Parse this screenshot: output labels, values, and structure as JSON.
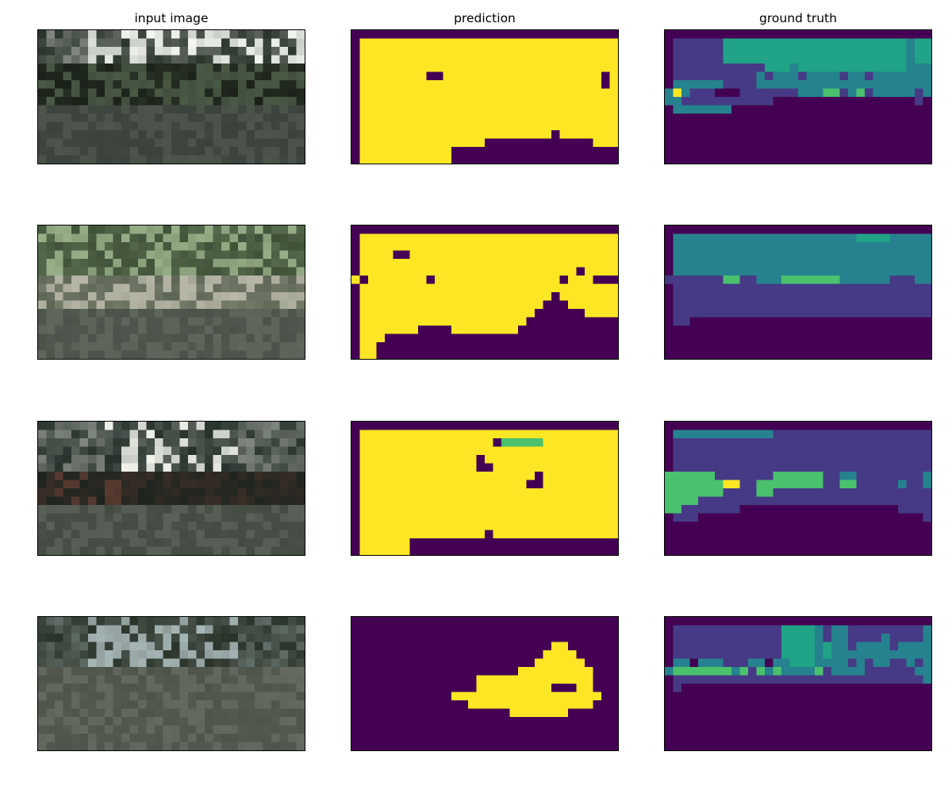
{
  "column_titles": [
    "input image",
    "prediction",
    "ground truth"
  ],
  "grid": {
    "cols": 32,
    "rows": 16
  },
  "palette": {
    "class0": "#440154",
    "class1": "#463a86",
    "class2": "#26828e",
    "class3": "#20a386",
    "class4": "#4ac16d",
    "class5": "#fde725"
  },
  "rows": [
    {
      "input": {
        "bands": [
          {
            "rows": [
              0,
              3
            ],
            "base": "#2b352c",
            "accent": "#f3f5f0",
            "accent_from": 6,
            "accent_to": 32
          },
          {
            "rows": [
              4,
              8
            ],
            "base": "#1b2119",
            "accent": "#4a5a45",
            "accent_from": 0,
            "accent_to": 32
          },
          {
            "rows": [
              9,
              15
            ],
            "base": "#3b423b",
            "accent": "#4d554d",
            "accent_from": 0,
            "accent_to": 32
          }
        ]
      },
      "prediction": [
        "00000000000000000000000000000000",
        "05555555555555555555555555555555",
        "05555555555555555555555555555555",
        "05555555555555555555555555555555",
        "05555555555555555555555555555555",
        "05555555500555555555555555555505",
        "05555555555555555555555555555505",
        "05555555555555555555555555555555",
        "05555555555555555555555555555555",
        "05555555555555555555555555555555",
        "05555555555555555555555555555555",
        "05555555555555555555555555555555",
        "05555555555555555555555505555555",
        "05555555555555550000000000000555",
        "05555555555500000000000000000000",
        "05555555555500000000000000000000"
      ],
      "truth": [
        "00000000000000000000000000000000",
        "01111113333333333333333333333233",
        "01111113333333333333333333333233",
        "01111113333333333333333333333233",
        "01111111111133323333333333333222",
        "01111111111212221222212212222222",
        "02222221111222222222222222222222",
        "25211100011111112224412412222212",
        "22111111111110000000000000000010",
        "02222222000000000000000000000000",
        "00000000000000000000000000000000",
        "00000000000000000000000000000000",
        "00000000000000000000000000000000",
        "00000000000000000000000000000000",
        "00000000000000000000000000000000",
        "00000000000000000000000000000000"
      ]
    },
    {
      "input": {
        "bands": [
          {
            "rows": [
              0,
              5
            ],
            "base": "#3f5238",
            "accent": "#98b088",
            "accent_from": 0,
            "accent_to": 32
          },
          {
            "rows": [
              6,
              9
            ],
            "base": "#5e6656",
            "accent": "#b8b8a8",
            "accent_from": 0,
            "accent_to": 32
          },
          {
            "rows": [
              10,
              15
            ],
            "base": "#4b5249",
            "accent": "#5f675d",
            "accent_from": 0,
            "accent_to": 32
          }
        ]
      },
      "prediction": [
        "00000000000000000000000000000000",
        "05555555555555555555555555555555",
        "05555555555555555555555555555555",
        "05555005555555555555555555555555",
        "05555555555555555555555555555555",
        "05555555555555555555555555505555",
        "50555555505555555555555550555000",
        "05555555555555555555555555555555",
        "05555555555555555555555505555555",
        "05555555555555555555555000555555",
        "05555555555555555555550000005555",
        "05555555555555555555500000000000",
        "05555555000055555555000000000000",
        "05550000000000000000000000000000",
        "05500000000000000000000000000000",
        "05500000000000000000000000000000"
      ],
      "truth": [
        "00000000000000000000000000000000",
        "02222222222222222222222333322222",
        "02222222222222222222222222222222",
        "02222222222222222222222222222222",
        "02222222222222222222222222222222",
        "02222222222222222222222222222222",
        "11111114411222444444422222211122",
        "01111111111111111111111111111111",
        "01111111111111111111111111111111",
        "01111111111111111111111111111111",
        "01111111111111111111111111111111",
        "01100000000000000000000000000000",
        "00000000000000000000000000000000",
        "00000000000000000000000000000000",
        "00000000000000000000000000000000",
        "00000000000000000000000000000000"
      ]
    },
    {
      "input": {
        "bands": [
          {
            "rows": [
              0,
              5
            ],
            "base": "#26302a",
            "accent": "#f0f2ea",
            "accent_from": 8,
            "accent_to": 24
          },
          {
            "rows": [
              6,
              9
            ],
            "base": "#1e241f",
            "accent": "#5a3a30",
            "accent_from": 2,
            "accent_to": 10
          },
          {
            "rows": [
              10,
              15
            ],
            "base": "#424a42",
            "accent": "#586058",
            "accent_from": 0,
            "accent_to": 32
          }
        ]
      },
      "prediction": [
        "00000000000000000000000000000000",
        "05555555555555555555555555555555",
        "05555555555555555044444555555555",
        "05555555555555555555555555555555",
        "05555555555555505555555555555555",
        "05555555555555500555555555555555",
        "05555555555555555555550555555555",
        "05555555555555555555500555555555",
        "05555555555555555555555555555555",
        "05555555555555555555555555555555",
        "05555555555555555555555555555555",
        "05555555555555555555555555555555",
        "05555555555555555555555555555555",
        "05555555555555550555555555555555",
        "05555550000000000000000000000000",
        "05555550000000000000000000000000"
      ],
      "truth": [
        "00000000000000000000000000000000",
        "02222222222221111111111111111111",
        "01111111111111111111111111111111",
        "01111111111111111111111111111111",
        "01111111111111111111111111111111",
        "01111111111111111111111111111111",
        "44444411111114444441122111111112",
        "44444445511444444441144111112112",
        "44444441111441111111111111111111",
        "44441111111111111111111111111111",
        "44111111100000000000000000001111",
        "01110000000000000000000000000001",
        "00000000000000000000000000000000",
        "00000000000000000000000000000000",
        "00000000000000000000000000000000",
        "00000000000000000000000000000000"
      ]
    },
    {
      "input": {
        "bands": [
          {
            "rows": [
              0,
              5
            ],
            "base": "#2a3329",
            "accent": "#a8b8b8",
            "accent_from": 6,
            "accent_to": 24
          },
          {
            "rows": [
              6,
              15
            ],
            "base": "#4e544a",
            "accent": "#646a60",
            "accent_from": 0,
            "accent_to": 32
          }
        ]
      },
      "prediction": [
        "00000000000000000000000000000000",
        "00000000000000000000000000000000",
        "00000000000000000000000000000000",
        "00000000000000000000000055000000",
        "00000000000000000000000555500000",
        "00000000000000000000005555550000",
        "00000000000000000000555555555000",
        "00000000000000055555555555555000",
        "00000000000000055555555500055000",
        "00000000000055555555555555555500",
        "00000000000000555555555555555000",
        "00000000000000000005555555000000",
        "00000000000000000000000000000000",
        "00000000000000000000000000000000",
        "00000000000000000000000000000000",
        "00000000000000000000000000000000"
      ],
      "truth": [
        "00000000000000000000000000000000",
        "01111111111111333321221111111112",
        "01111111111111333321221111211112",
        "01111111111111333323221222212222",
        "01111111111111333323222222222222",
        "02202221112202233322221212211212",
        "24444444241424222241222211111122",
        "01111111111111111111111111111112",
        "01000000000000000000000000000000",
        "00000000000000000000000000000000",
        "00000000000000000000000000000000",
        "00000000000000000000000000000000",
        "00000000000000000000000000000000",
        "00000000000000000000000000000000",
        "00000000000000000000000000000000",
        "00000000000000000000000000000000"
      ]
    }
  ]
}
